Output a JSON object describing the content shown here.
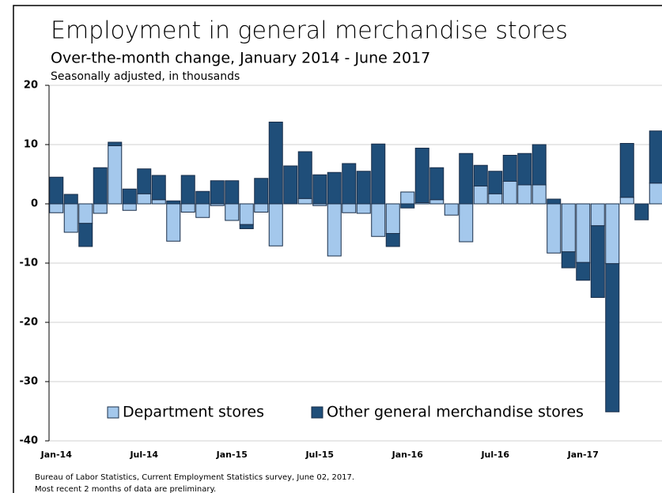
{
  "chart_data": {
    "type": "stacked_bar",
    "title": "Employment in general merchandise stores",
    "subtitle": "Over-the-month change, January 2014 - June 2017",
    "y_label": "Seasonally adjusted, in thousands",
    "categories": [
      "Jan-14",
      null,
      null,
      null,
      null,
      null,
      "Jul-14",
      null,
      null,
      null,
      null,
      null,
      "Jan-15",
      null,
      null,
      null,
      null,
      null,
      "Jul-15",
      null,
      null,
      null,
      null,
      null,
      "Jan-16",
      null,
      null,
      null,
      null,
      null,
      "Jul-16",
      null,
      null,
      null,
      null,
      null,
      "Jan-17",
      null,
      null,
      null,
      null,
      null
    ],
    "series": [
      {
        "name": "Department stores",
        "color": "#a4c8ec",
        "values": [
          -1.5,
          -4.8,
          -3.3,
          -1.6,
          9.8,
          -1.1,
          1.7,
          0.7,
          -6.3,
          -1.4,
          -2.3,
          -0.3,
          -2.8,
          -3.5,
          -1.4,
          -7.1,
          0,
          0.9,
          -0.3,
          -8.8,
          -1.5,
          -1.6,
          -5.5,
          -5,
          2.0,
          0.2,
          0.7,
          -1.9,
          -6.4,
          3.0,
          1.7,
          3.8,
          3.2,
          3.2,
          -8.3,
          -8.1,
          -9.9,
          -3.7,
          -10.1,
          1.1,
          0,
          3.5
        ]
      },
      {
        "name": "Other general merchandise stores",
        "color": "#1f4e79",
        "values": [
          4.5,
          1.6,
          -3.9,
          6.1,
          0.6,
          2.5,
          4.2,
          4.1,
          0.5,
          4.8,
          2.1,
          3.9,
          3.9,
          -0.7,
          4.3,
          13.8,
          6.4,
          7.9,
          4.9,
          5.3,
          6.8,
          5.5,
          10.1,
          -2.2,
          -0.7,
          9.2,
          5.4,
          0,
          8.5,
          3.5,
          3.8,
          4.4,
          5.3,
          6.8,
          0.8,
          -2.7,
          -3.0,
          -12.1,
          -25,
          9.1,
          -2.7,
          8.8
        ]
      }
    ],
    "ylim": [
      -40,
      20
    ],
    "yticks": [
      -40,
      -30,
      -20,
      -10,
      0,
      10,
      20
    ],
    "grid": true,
    "legend": "bottom",
    "footer": [
      "Bureau of Labor Statistics, Current Employment Statistics survey, June 02, 2017.",
      "Most recent 2 months of data are preliminary."
    ]
  }
}
